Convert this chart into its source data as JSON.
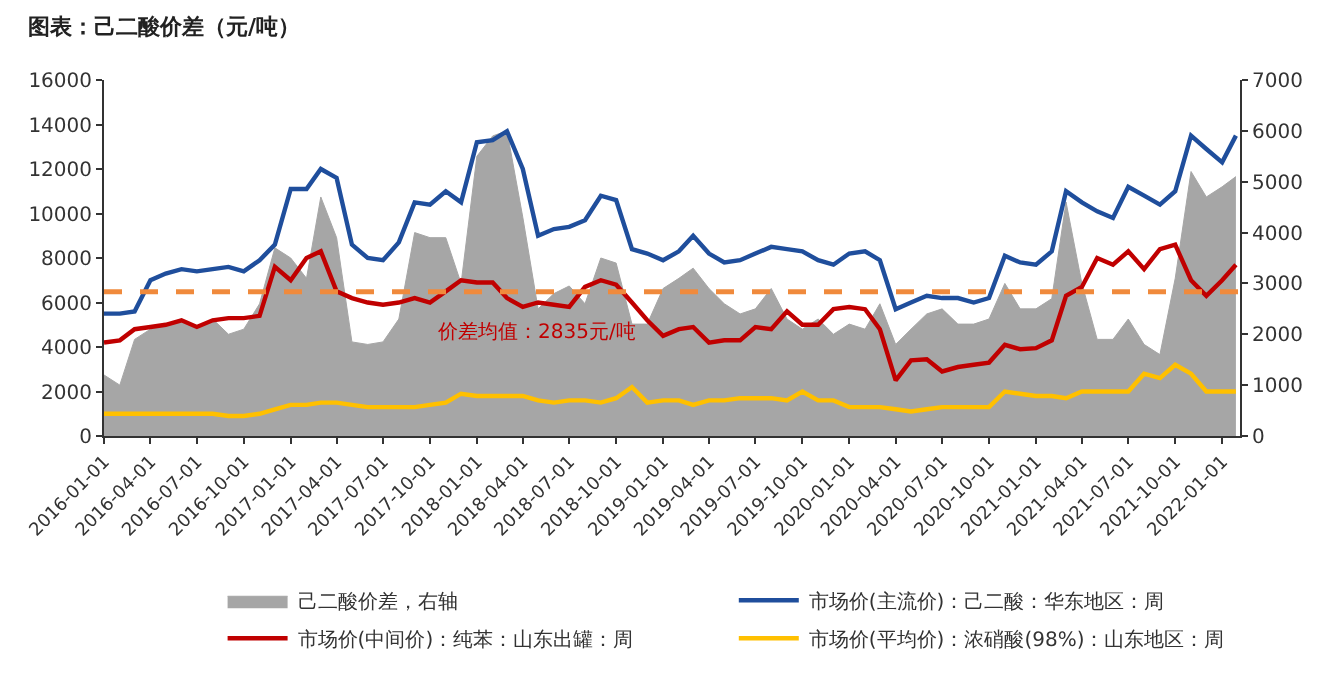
{
  "chart_data": {
    "type": "line",
    "title": "图表：己二酸价差（元/吨）",
    "x": [
      "2016-01",
      "2016-02",
      "2016-03",
      "2016-04",
      "2016-05",
      "2016-06",
      "2016-07",
      "2016-08",
      "2016-09",
      "2016-10",
      "2016-11",
      "2016-12",
      "2017-01",
      "2017-02",
      "2017-03",
      "2017-04",
      "2017-05",
      "2017-06",
      "2017-07",
      "2017-08",
      "2017-09",
      "2017-10",
      "2017-11",
      "2017-12",
      "2018-01",
      "2018-02",
      "2018-03",
      "2018-04",
      "2018-05",
      "2018-06",
      "2018-07",
      "2018-08",
      "2018-09",
      "2018-10",
      "2018-11",
      "2018-12",
      "2019-01",
      "2019-02",
      "2019-03",
      "2019-04",
      "2019-05",
      "2019-06",
      "2019-07",
      "2019-08",
      "2019-09",
      "2019-10",
      "2019-11",
      "2019-12",
      "2020-01",
      "2020-02",
      "2020-03",
      "2020-04",
      "2020-05",
      "2020-06",
      "2020-07",
      "2020-08",
      "2020-09",
      "2020-10",
      "2020-11",
      "2020-12",
      "2021-01",
      "2021-02",
      "2021-03",
      "2021-04",
      "2021-05",
      "2021-06",
      "2021-07",
      "2021-08",
      "2021-09",
      "2021-10",
      "2021-11",
      "2021-12",
      "2022-01",
      "2022-01-28"
    ],
    "series": [
      {
        "name": "己二酸价差，右轴",
        "type": "area",
        "axis": "y2",
        "color": "#a6a6a6",
        "values": [
          1200,
          1000,
          1900,
          2100,
          2200,
          2300,
          2100,
          2300,
          2000,
          2100,
          2600,
          3700,
          3500,
          3100,
          4700,
          3900,
          1850,
          1800,
          1850,
          2300,
          4000,
          3900,
          3900,
          3000,
          5500,
          5900,
          6000,
          4300,
          2500,
          2800,
          2950,
          2600,
          3500,
          3400,
          2200,
          2200,
          2900,
          3100,
          3300,
          2900,
          2600,
          2400,
          2500,
          2900,
          2300,
          2100,
          2300,
          2000,
          2200,
          2100,
          2600,
          1800,
          2100,
          2400,
          2500,
          2200,
          2200,
          2300,
          3000,
          2500,
          2500,
          2700,
          4600,
          3000,
          1900,
          1900,
          2300,
          1800,
          1600,
          3100,
          5200,
          4700,
          4900,
          5100
        ]
      },
      {
        "name": "市场价(主流价)：己二酸：华东地区：周",
        "color": "#1f4e9c",
        "values": [
          5500,
          5500,
          5600,
          7000,
          7300,
          7500,
          7400,
          7500,
          7600,
          7400,
          7900,
          8600,
          11100,
          11100,
          12000,
          11600,
          8600,
          8000,
          7900,
          8700,
          10500,
          10400,
          11000,
          10500,
          13200,
          13300,
          13700,
          12000,
          9000,
          9300,
          9400,
          9700,
          10800,
          10600,
          8400,
          8200,
          7900,
          8300,
          9000,
          8200,
          7800,
          7900,
          8200,
          8500,
          8400,
          8300,
          7900,
          7700,
          8200,
          8300,
          7900,
          5700,
          6000,
          6300,
          6200,
          6200,
          6000,
          6200,
          8100,
          7800,
          7700,
          8300,
          11000,
          10500,
          10100,
          9800,
          11200,
          10800,
          10400,
          11000,
          13500,
          12900,
          12300,
          13500
        ]
      },
      {
        "name": "市场价(中间价)：纯苯：山东出罐：周",
        "color": "#c00000",
        "values": [
          4200,
          4300,
          4800,
          4900,
          5000,
          5200,
          4900,
          5200,
          5300,
          5300,
          5400,
          7600,
          7000,
          8000,
          8300,
          6500,
          6200,
          6000,
          5900,
          6000,
          6200,
          6000,
          6500,
          7000,
          6900,
          6900,
          6200,
          5800,
          6000,
          5900,
          5800,
          6700,
          7000,
          6800,
          6000,
          5200,
          4500,
          4800,
          4900,
          4200,
          4300,
          4300,
          4900,
          4800,
          5600,
          5000,
          5000,
          5700,
          5800,
          5700,
          4800,
          2500,
          3400,
          3450,
          2900,
          3100,
          3200,
          3300,
          4100,
          3900,
          3950,
          4300,
          6300,
          6700,
          8000,
          7700,
          8300,
          7500,
          8400,
          8600,
          7000,
          6300,
          7000,
          7700
        ]
      },
      {
        "name": "市场价(平均价)：浓硝酸(98%)：山东地区：周",
        "color": "#ffc000",
        "values": [
          1000,
          1000,
          1000,
          1000,
          1000,
          1000,
          1000,
          1000,
          900,
          900,
          1000,
          1200,
          1400,
          1400,
          1500,
          1500,
          1400,
          1300,
          1300,
          1300,
          1300,
          1400,
          1500,
          1900,
          1800,
          1800,
          1800,
          1800,
          1600,
          1500,
          1600,
          1600,
          1500,
          1700,
          2200,
          1500,
          1600,
          1600,
          1400,
          1600,
          1600,
          1700,
          1700,
          1700,
          1600,
          2000,
          1600,
          1600,
          1300,
          1300,
          1300,
          1200,
          1100,
          1200,
          1300,
          1300,
          1300,
          1300,
          2000,
          1900,
          1800,
          1800,
          1700,
          2000,
          2000,
          2000,
          2000,
          2800,
          2600,
          3200,
          2800,
          2000,
          2000,
          2000
        ]
      }
    ],
    "xlim": [
      "2016-01-01",
      "2022-02-05"
    ],
    "xticks": [
      "2016-01-01",
      "2016-04-01",
      "2016-07-01",
      "2016-10-01",
      "2017-01-01",
      "2017-04-01",
      "2017-07-01",
      "2017-10-01",
      "2018-01-01",
      "2018-04-01",
      "2018-07-01",
      "2018-10-01",
      "2019-01-01",
      "2019-04-01",
      "2019-07-01",
      "2019-10-01",
      "2020-01-01",
      "2020-04-01",
      "2020-07-01",
      "2020-10-01",
      "2021-01-01",
      "2021-04-01",
      "2021-07-01",
      "2021-10-01",
      "2022-01-01"
    ],
    "ylim": [
      0,
      16000
    ],
    "yticks": [
      0,
      2000,
      4000,
      6000,
      8000,
      10000,
      12000,
      14000,
      16000
    ],
    "y2lim": [
      0,
      7000
    ],
    "y2ticks": [
      0,
      1000,
      2000,
      3000,
      4000,
      5000,
      6000,
      7000
    ],
    "ref_lines": [
      {
        "axis": "y2",
        "value": 2835,
        "label": "价差均值：2835元/吨",
        "color": "#f08a3c",
        "line_style": "dashed"
      }
    ],
    "grid": false,
    "legend": "bottom",
    "marker": "none",
    "line_style": "solid"
  }
}
